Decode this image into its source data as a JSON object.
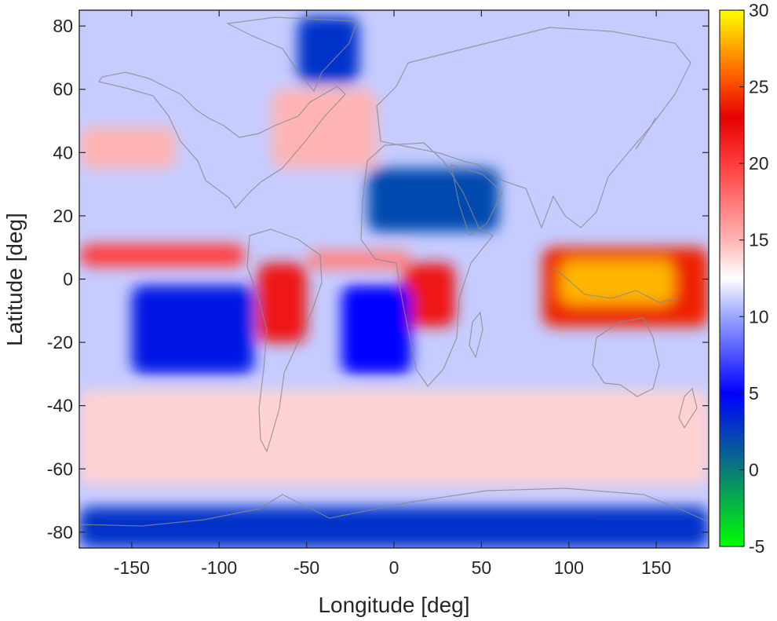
{
  "chart_data": {
    "type": "heatmap",
    "title": "",
    "xlabel": "Longitude [deg]",
    "ylabel": "Latitude [deg]",
    "xlim": [
      -180,
      180
    ],
    "ylim": [
      -85,
      85
    ],
    "xticks": [
      -150,
      -100,
      -50,
      0,
      50,
      100,
      150
    ],
    "yticks": [
      80,
      60,
      40,
      20,
      0,
      -20,
      -40,
      -60,
      -80
    ],
    "colorbar": {
      "range": [
        -5,
        30
      ],
      "ticks": [
        30,
        25,
        20,
        15,
        10,
        5,
        0,
        -5
      ],
      "stops": [
        {
          "value": -5,
          "color": "#00ff00"
        },
        {
          "value": 0,
          "color": "#0a7a78"
        },
        {
          "value": 5,
          "color": "#0000ff"
        },
        {
          "value": 10,
          "color": "#9aa6ff"
        },
        {
          "value": 12.5,
          "color": "#ffffff"
        },
        {
          "value": 15,
          "color": "#ffb4b4"
        },
        {
          "value": 20,
          "color": "#ff3c3c"
        },
        {
          "value": 23,
          "color": "#e60000"
        },
        {
          "value": 26,
          "color": "#ff6a00"
        },
        {
          "value": 30,
          "color": "#ffff00"
        }
      ]
    },
    "features": [
      {
        "name": "itcz-pacific",
        "lon": [
          -180,
          -85
        ],
        "lat": [
          4,
          11
        ],
        "value": 20
      },
      {
        "name": "itcz-atlantic",
        "lon": [
          -50,
          10
        ],
        "lat": [
          3,
          9
        ],
        "value": 17
      },
      {
        "name": "tropical-africa",
        "lon": [
          5,
          35
        ],
        "lat": [
          -15,
          5
        ],
        "value": 22
      },
      {
        "name": "amazon",
        "lon": [
          -78,
          -50
        ],
        "lat": [
          -20,
          5
        ],
        "value": 22
      },
      {
        "name": "warm-pool",
        "lon": [
          85,
          180
        ],
        "lat": [
          -15,
          10
        ],
        "value": 24
      },
      {
        "name": "maritime-continent-peak",
        "lon": [
          95,
          160
        ],
        "lat": [
          -8,
          6
        ],
        "value": 28
      },
      {
        "name": "north-pacific-storm-track",
        "lon": [
          -180,
          -125
        ],
        "lat": [
          35,
          48
        ],
        "value": 15
      },
      {
        "name": "north-atlantic-storm-track",
        "lon": [
          -70,
          -10
        ],
        "lat": [
          35,
          60
        ],
        "value": 15
      },
      {
        "name": "southern-ocean-belt",
        "lon": [
          -180,
          180
        ],
        "lat": [
          -65,
          -35
        ],
        "value": 14
      },
      {
        "name": "sahara-arabia",
        "lon": [
          -15,
          60
        ],
        "lat": [
          15,
          35
        ],
        "value": 2
      },
      {
        "name": "south-pacific-dry",
        "lon": [
          -150,
          -80
        ],
        "lat": [
          -30,
          -2
        ],
        "value": 4
      },
      {
        "name": "south-atlantic-dry",
        "lon": [
          -30,
          10
        ],
        "lat": [
          -30,
          -2
        ],
        "value": 5
      },
      {
        "name": "greenland",
        "lon": [
          -55,
          -20
        ],
        "lat": [
          62,
          83
        ],
        "value": 3
      },
      {
        "name": "antarctica",
        "lon": [
          -180,
          180
        ],
        "lat": [
          -85,
          -72
        ],
        "value": 3
      }
    ]
  }
}
